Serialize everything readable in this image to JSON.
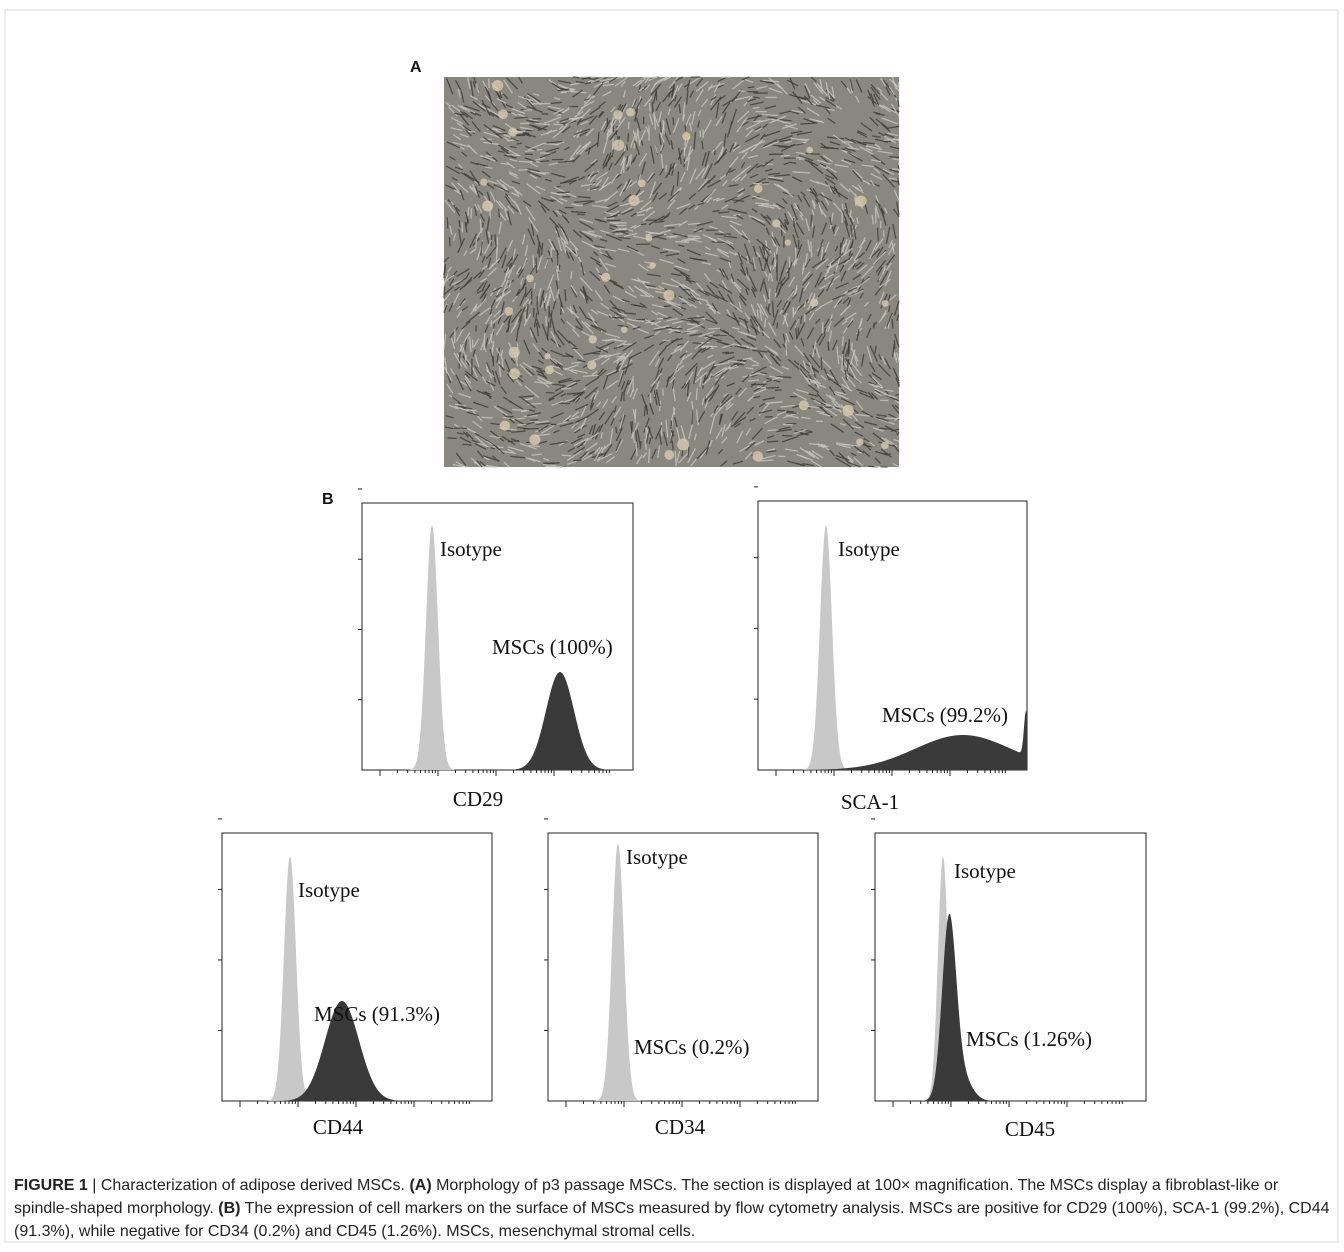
{
  "figure": {
    "panel_a_label": "A",
    "panel_b_label": "B",
    "histograms": [
      {
        "marker": "CD29",
        "isotype_label": "Isotype",
        "msc_label": "MSCs (100%)"
      },
      {
        "marker": "SCA-1",
        "isotype_label": "Isotype",
        "msc_label": "MSCs (99.2%)"
      },
      {
        "marker": "CD44",
        "isotype_label": "Isotype",
        "msc_label": "MSCs (91.3%)"
      },
      {
        "marker": "CD34",
        "isotype_label": "Isotype",
        "msc_label": "MSCs (0.2%)"
      },
      {
        "marker": "CD45",
        "isotype_label": "Isotype",
        "msc_label": "MSCs (1.26%)"
      }
    ]
  },
  "caption": {
    "segments": [
      {
        "text": "FIGURE 1",
        "bold": true
      },
      {
        "text": " | Characterization of adipose derived MSCs. ",
        "bold": false
      },
      {
        "text": "(A)",
        "bold": true
      },
      {
        "text": " Morphology of p3 passage MSCs. The section is displayed at 100× magnification. The MSCs display a fibroblast-like or spindle-shaped morphology. ",
        "bold": false
      },
      {
        "text": "(B)",
        "bold": true
      },
      {
        "text": " The expression of cell markers on the surface of MSCs measured by flow cytometry analysis. MSCs are positive for CD29 (100%), SCA-1 (99.2%), CD44 (91.3%), while negative for CD34 (0.2%) and CD45 (1.26%). MSCs, mesenchymal stromal cells.",
        "bold": false
      }
    ]
  }
}
